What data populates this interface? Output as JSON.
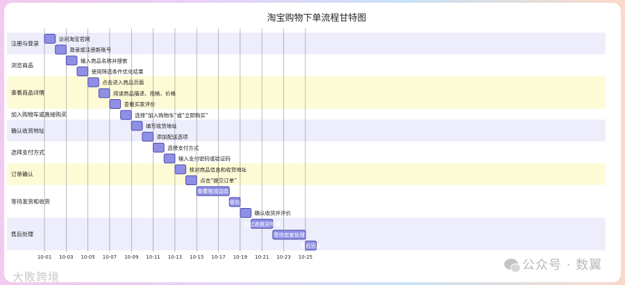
{
  "chart_data": {
    "type": "gantt",
    "title": "淘宝购物下单流程甘特图",
    "x_ticks": [
      "10-01",
      "10-03",
      "10-05",
      "10-07",
      "10-09",
      "10-11",
      "10-13",
      "10-15",
      "10-17",
      "10-19",
      "10-21",
      "10-23",
      "10-25"
    ],
    "sections": [
      {
        "name": "注册与登录",
        "shaded": true,
        "band_color": "#ededfb"
      },
      {
        "name": "浏览商品",
        "shaded": false,
        "band_color": "#ffffff"
      },
      {
        "name": "查看商品详情",
        "shaded": true,
        "band_color": "#fdfbd6"
      },
      {
        "name": "加入购物车或直接购买",
        "shaded": false,
        "band_color": "#ffffff"
      },
      {
        "name": "确认收货地址",
        "shaded": true,
        "band_color": "#ededfb"
      },
      {
        "name": "选择支付方式",
        "shaded": false,
        "band_color": "#ffffff"
      },
      {
        "name": "订单确认",
        "shaded": true,
        "band_color": "#fdfbd6"
      },
      {
        "name": "等待发货和收货",
        "shaded": false,
        "band_color": "#ffffff"
      },
      {
        "name": "售后处理",
        "shaded": true,
        "band_color": "#ededfb"
      }
    ],
    "tasks": [
      {
        "name": "访问淘宝官网",
        "section": 0,
        "start": "10-01",
        "end": "10-02",
        "label_inside": false
      },
      {
        "name": "登录或注册新账号",
        "section": 0,
        "start": "10-02",
        "end": "10-03",
        "label_inside": false
      },
      {
        "name": "输入商品名称并搜索",
        "section": 1,
        "start": "10-03",
        "end": "10-04",
        "label_inside": false
      },
      {
        "name": "使用筛选条件优化结果",
        "section": 1,
        "start": "10-04",
        "end": "10-05",
        "label_inside": false
      },
      {
        "name": "点击进入商品页面",
        "section": 2,
        "start": "10-05",
        "end": "10-06",
        "label_inside": false
      },
      {
        "name": "阅读商品描述、规格、价格",
        "section": 2,
        "start": "10-06",
        "end": "10-07",
        "label_inside": false
      },
      {
        "name": "查看买家评价",
        "section": 2,
        "start": "10-07",
        "end": "10-08",
        "label_inside": false
      },
      {
        "name": "选择“加入购物车”或“立即购买”",
        "section": 3,
        "start": "10-08",
        "end": "10-09",
        "label_inside": false
      },
      {
        "name": "填写收货地址",
        "section": 4,
        "start": "10-09",
        "end": "10-10",
        "label_inside": false
      },
      {
        "name": "添加配送选项",
        "section": 4,
        "start": "10-10",
        "end": "10-11",
        "label_inside": false
      },
      {
        "name": "选择支付方式",
        "section": 5,
        "start": "10-11",
        "end": "10-12",
        "label_inside": false
      },
      {
        "name": "输入支付密码或验证码",
        "section": 5,
        "start": "10-12",
        "end": "10-13",
        "label_inside": false
      },
      {
        "name": "核对商品信息和收货地址",
        "section": 6,
        "start": "10-13",
        "end": "10-14",
        "label_inside": false
      },
      {
        "name": "点击“提交订单”",
        "section": 6,
        "start": "10-14",
        "end": "10-15",
        "label_inside": false
      },
      {
        "name": "查看物流动态",
        "section": 7,
        "start": "10-15",
        "end": "10-18",
        "label_inside": true
      },
      {
        "name": "签收包裹",
        "section": 7,
        "start": "10-18",
        "end": "10-19",
        "label_inside": true
      },
      {
        "name": "确认收货并评价",
        "section": 7,
        "start": "10-19",
        "end": "10-20",
        "label_inside": false
      },
      {
        "name": "发起退换货申请",
        "section": 8,
        "start": "10-20",
        "end": "10-22",
        "label_inside": true
      },
      {
        "name": "等待卖家处理",
        "section": 8,
        "start": "10-22",
        "end": "10-25",
        "label_inside": true
      },
      {
        "name": "售后完成",
        "section": 8,
        "start": "10-25",
        "end": "10-26",
        "label_inside": true
      }
    ],
    "colors": {
      "bar_fill": "#8f8fe6",
      "bar_stroke": "#4a4aa8",
      "grid": "#8a8a8a",
      "text": "#222222",
      "inside_text": "#ffffff"
    },
    "grid": true
  },
  "watermarks": {
    "left": "大敗跨境",
    "right": "公众号 · 数翼"
  }
}
